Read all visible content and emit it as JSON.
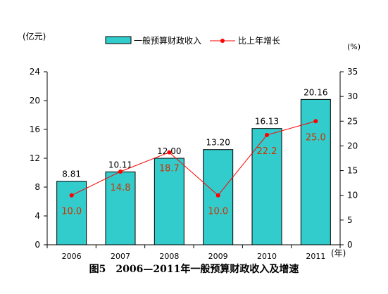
{
  "chart_data": {
    "type": "bar",
    "title": "图5　2006—2011年一般预算财政收入及增速",
    "categories": [
      "2006",
      "2007",
      "2008",
      "2009",
      "2010",
      "2011"
    ],
    "series": [
      {
        "name": "一般预算财政收入",
        "type": "bar",
        "axis": "left",
        "values": [
          8.81,
          10.11,
          12.0,
          13.2,
          16.13,
          20.16
        ],
        "labels": [
          "8.81",
          "10.11",
          "12.00",
          "13.20",
          "16.13",
          "20.16"
        ]
      },
      {
        "name": "比上年增长",
        "type": "line",
        "axis": "right",
        "values": [
          10.0,
          14.8,
          18.7,
          10.0,
          22.2,
          25.0
        ],
        "labels": [
          "10.0",
          "14.8",
          "18.7",
          "10.0",
          "22.2",
          "25.0"
        ]
      }
    ],
    "y_left": {
      "unit": "(亿元)",
      "range": [
        0,
        24
      ],
      "ticks": [
        0,
        4,
        8,
        12,
        16,
        20,
        24
      ]
    },
    "y_right": {
      "unit": "(%)",
      "range": [
        0,
        35
      ],
      "ticks": [
        0,
        5,
        10,
        15,
        20,
        25,
        30,
        35
      ]
    },
    "x_unit": "(年)",
    "legend_position": "top",
    "grid": false,
    "colors": {
      "bar": "#33CCCC",
      "line": "#FF0000",
      "line_label": "#CC3300"
    }
  }
}
